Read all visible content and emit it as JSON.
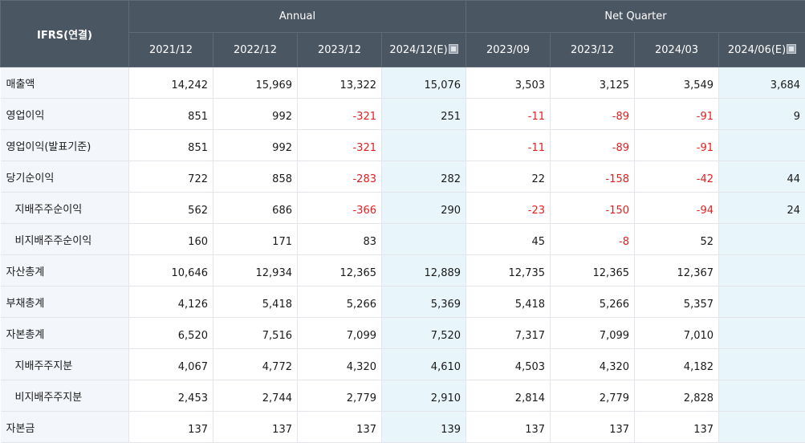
{
  "header": {
    "corner": "IFRS(연결)",
    "annual": "Annual",
    "net_quarter": "Net Quarter",
    "periods": [
      "2021/12",
      "2022/12",
      "2023/12",
      "2024/12(E)",
      "2023/09",
      "2023/12",
      "2024/03",
      "2024/06(E)"
    ],
    "estimate_columns": [
      3,
      7
    ]
  },
  "rows": [
    {
      "label": "매출액",
      "sub": false,
      "values": [
        "14,242",
        "15,969",
        "13,322",
        "15,076",
        "3,503",
        "3,125",
        "3,549",
        "3,684"
      ]
    },
    {
      "label": "영업이익",
      "sub": false,
      "values": [
        "851",
        "992",
        "-321",
        "251",
        "-11",
        "-89",
        "-91",
        "9"
      ]
    },
    {
      "label": "영업이익(발표기준)",
      "sub": false,
      "values": [
        "851",
        "992",
        "-321",
        "",
        "-11",
        "-89",
        "-91",
        ""
      ]
    },
    {
      "label": "당기순이익",
      "sub": false,
      "values": [
        "722",
        "858",
        "-283",
        "282",
        "22",
        "-158",
        "-42",
        "44"
      ]
    },
    {
      "label": "지배주주순이익",
      "sub": true,
      "values": [
        "562",
        "686",
        "-366",
        "290",
        "-23",
        "-150",
        "-94",
        "24"
      ]
    },
    {
      "label": "비지배주주순이익",
      "sub": true,
      "values": [
        "160",
        "171",
        "83",
        "",
        "45",
        "-8",
        "52",
        ""
      ]
    },
    {
      "label": "자산총계",
      "sub": false,
      "values": [
        "10,646",
        "12,934",
        "12,365",
        "12,889",
        "12,735",
        "12,365",
        "12,367",
        ""
      ]
    },
    {
      "label": "부채총계",
      "sub": false,
      "values": [
        "4,126",
        "5,418",
        "5,266",
        "5,369",
        "5,418",
        "5,266",
        "5,357",
        ""
      ]
    },
    {
      "label": "자본총계",
      "sub": false,
      "values": [
        "6,520",
        "7,516",
        "7,099",
        "7,520",
        "7,317",
        "7,099",
        "7,010",
        ""
      ]
    },
    {
      "label": "지배주주지분",
      "sub": true,
      "values": [
        "4,067",
        "4,772",
        "4,320",
        "4,610",
        "4,503",
        "4,320",
        "4,182",
        ""
      ]
    },
    {
      "label": "비지배주주지분",
      "sub": true,
      "values": [
        "2,453",
        "2,744",
        "2,779",
        "2,910",
        "2,814",
        "2,779",
        "2,828",
        ""
      ]
    },
    {
      "label": "자본금",
      "sub": false,
      "values": [
        "137",
        "137",
        "137",
        "139",
        "137",
        "137",
        "137",
        ""
      ]
    }
  ],
  "colors": {
    "header_bg": "#4b5663",
    "label_bg": "#f3f6fb",
    "estimate_bg": "#e8f5fb",
    "negative": "#e02020"
  }
}
